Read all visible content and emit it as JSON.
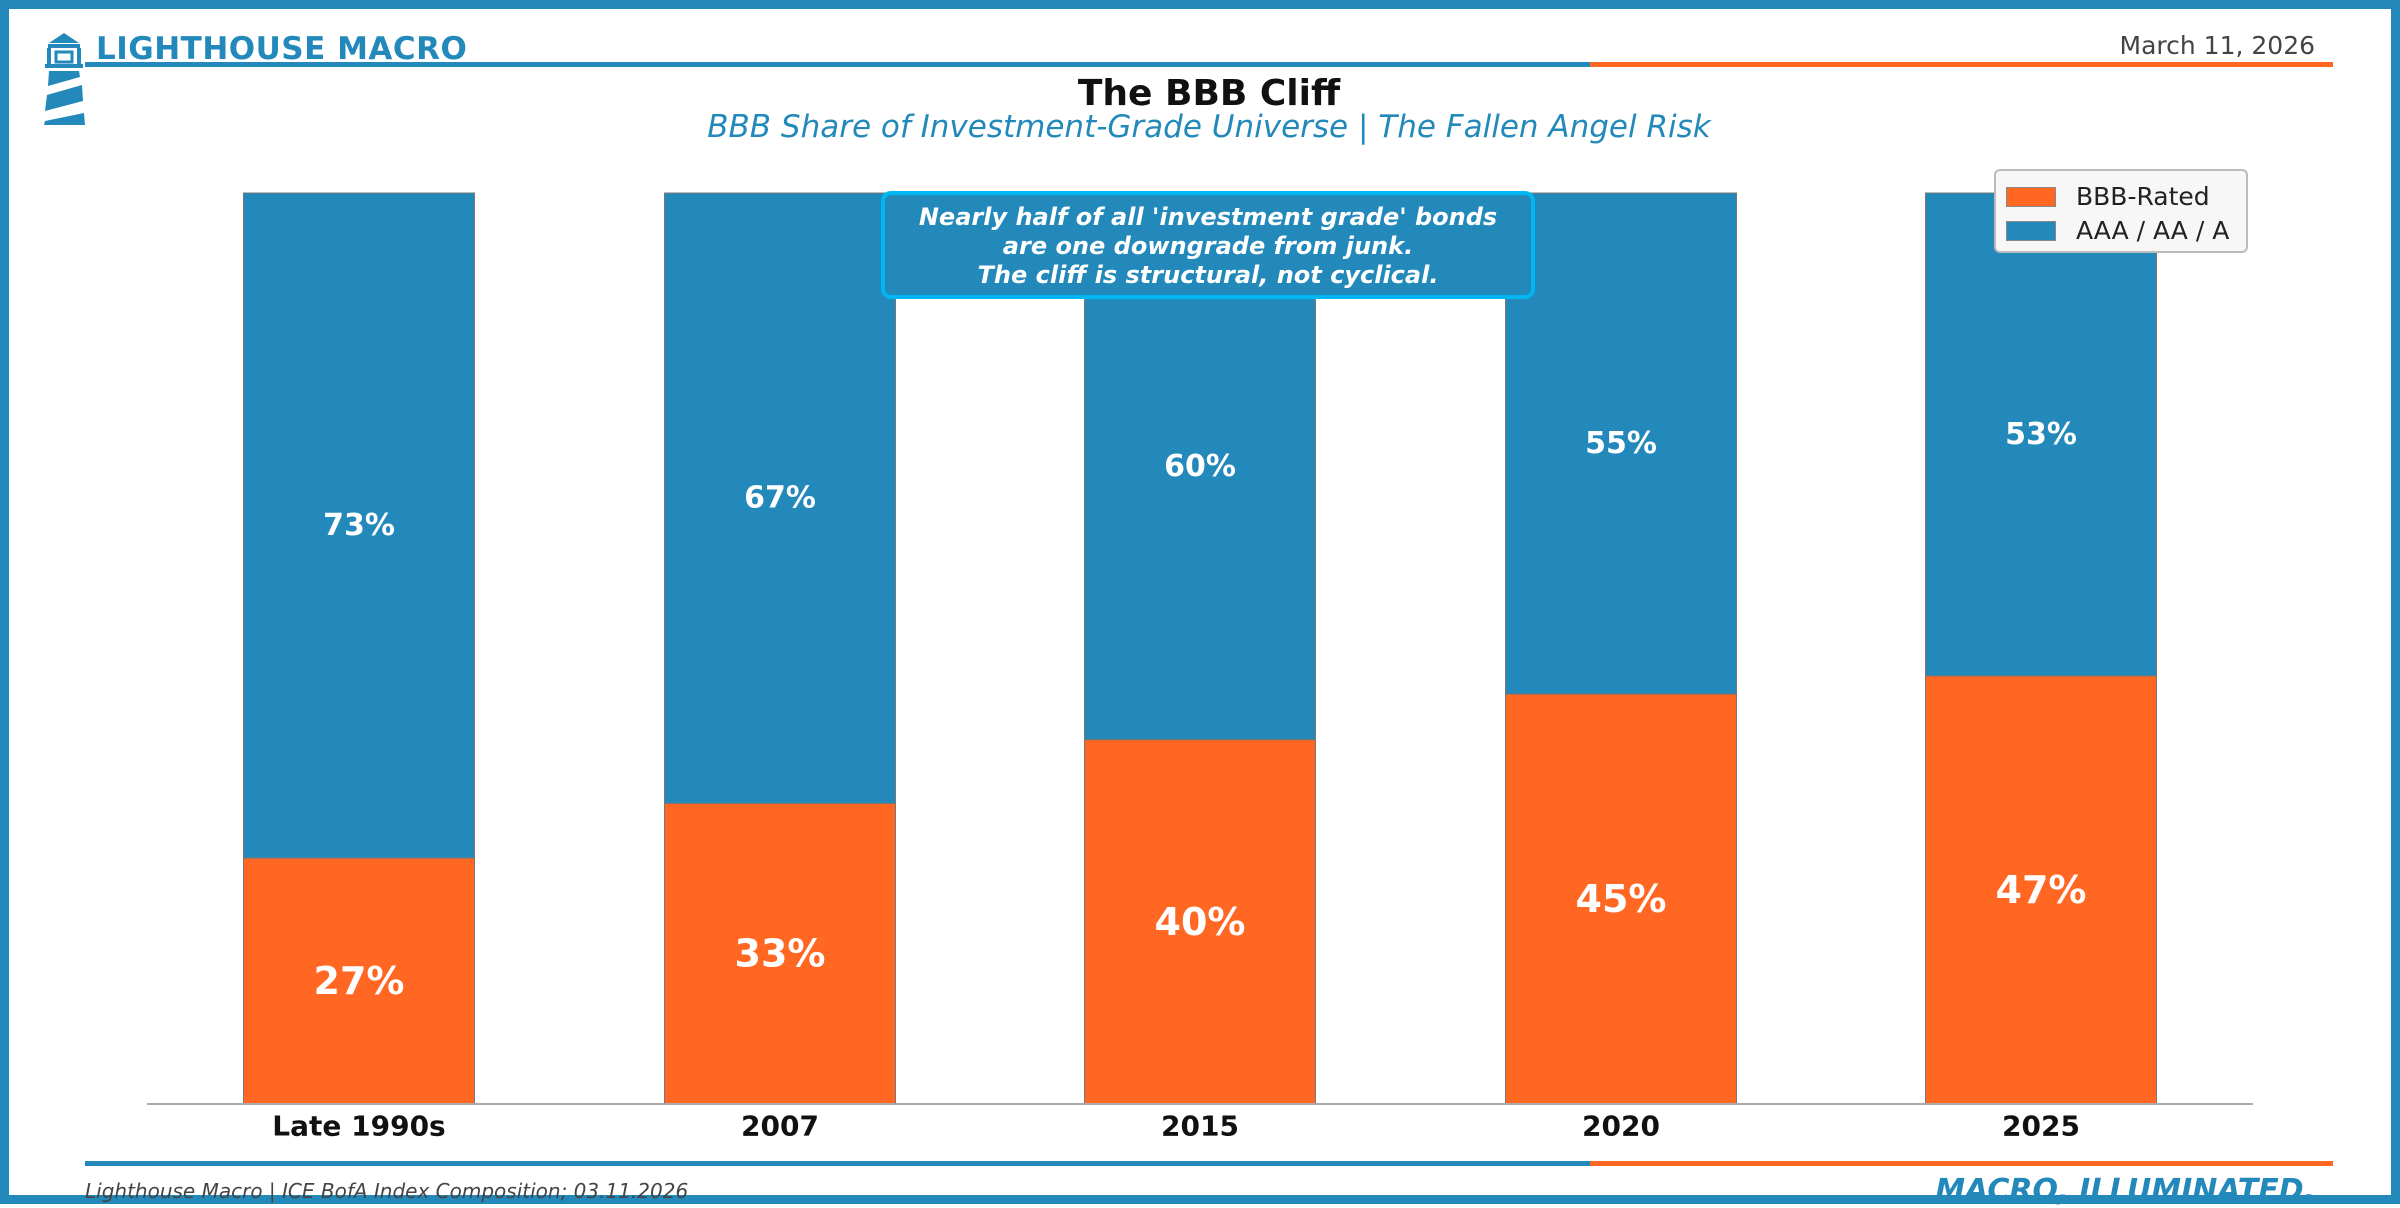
{
  "header": {
    "brand": "LIGHTHOUSE MACRO",
    "date": "March 11, 2026",
    "logo_icon": "lighthouse-icon"
  },
  "colors": {
    "blue": "#2389BA",
    "orange": "#FF6723",
    "callout_border": "#00B7F1"
  },
  "footer": {
    "source": "Lighthouse Macro | ICE BofA Index Composition; 03.11.2026",
    "tagline": "MACRO, ILLUMINATED."
  },
  "callout": {
    "lines": [
      "Nearly half of all 'investment grade' bonds",
      "are one downgrade from junk.",
      "The cliff is structural, not cyclical."
    ]
  },
  "chart_data": {
    "type": "bar",
    "stacked": true,
    "title": "The BBB Cliff",
    "subtitle": "BBB Share of Investment-Grade Universe | The Fallen Angel Risk",
    "xlabel": "",
    "ylabel": "",
    "ylim": [
      0,
      100
    ],
    "grid": false,
    "legend_position": "top-right",
    "categories": [
      "Late 1990s",
      "2007",
      "2015",
      "2020",
      "2025"
    ],
    "series": [
      {
        "name": "BBB-Rated",
        "color": "#FF6723",
        "values": [
          27,
          33,
          40,
          45,
          47
        ],
        "labels": [
          "27%",
          "33%",
          "40%",
          "45%",
          "47%"
        ]
      },
      {
        "name": "AAA / AA / A",
        "color": "#2389BA",
        "values": [
          73,
          67,
          60,
          55,
          53
        ],
        "labels": [
          "73%",
          "67%",
          "60%",
          "55%",
          "53%"
        ]
      }
    ]
  }
}
